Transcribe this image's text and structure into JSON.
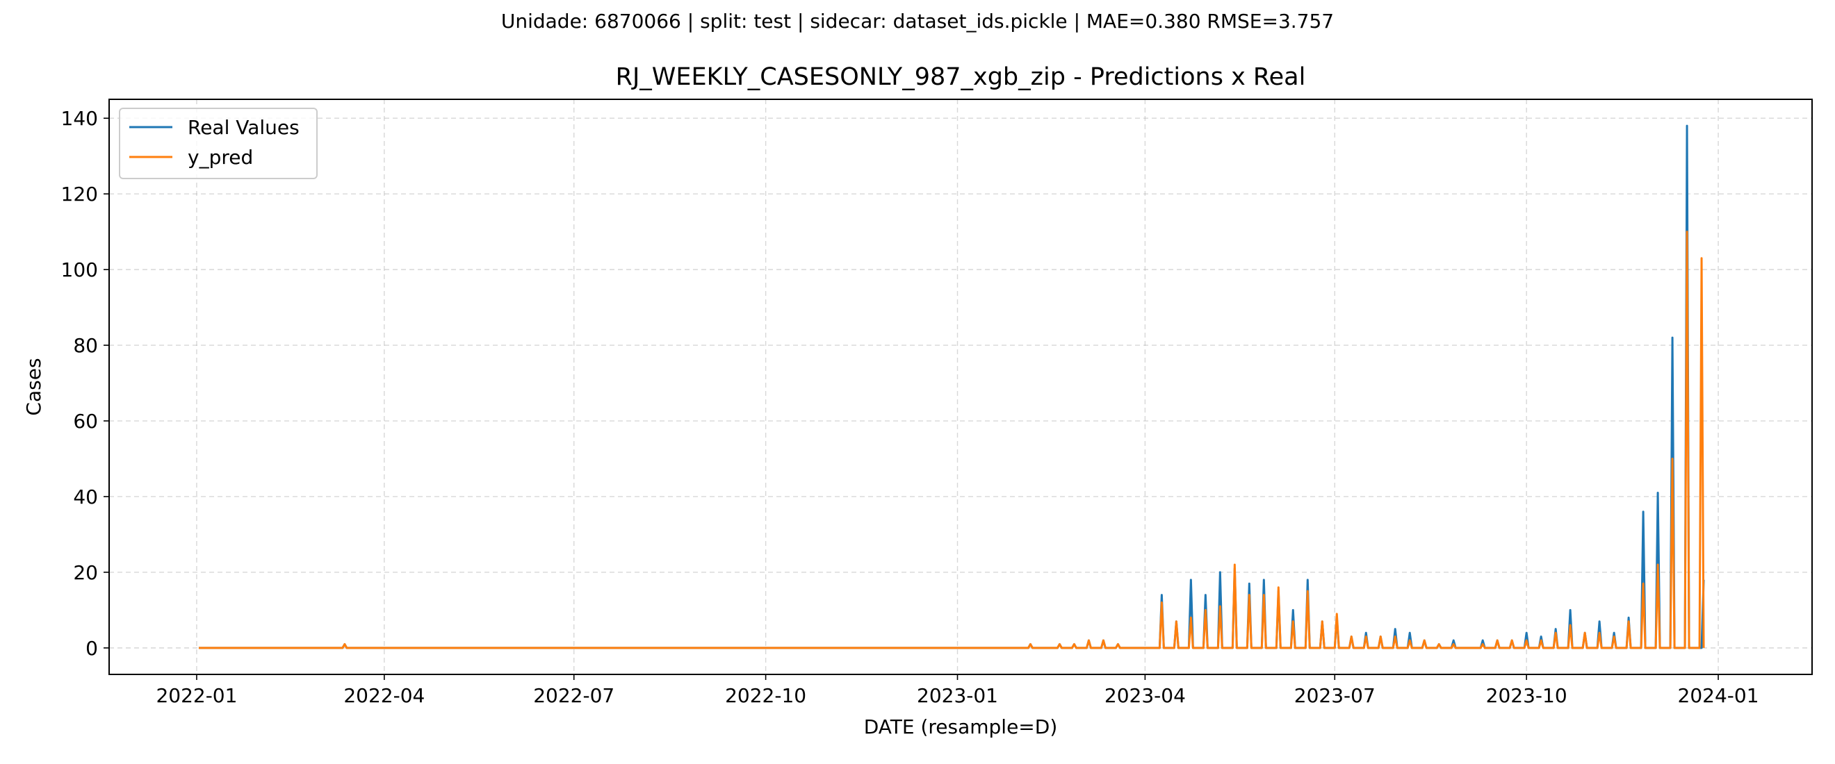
{
  "suptitle": "Unidade: 6870066 | split: test | sidecar: dataset_ids.pickle | MAE=0.380  RMSE=3.757",
  "chart_data": {
    "type": "line",
    "title": "RJ_WEEKLY_CASESONLY_987_xgb_zip - Predictions x Real",
    "xlabel": "DATE (resample=D)",
    "ylabel": "Cases",
    "xlim": [
      "2021-11-20",
      "2024-02-15"
    ],
    "ylim": [
      -7,
      145
    ],
    "xticks": [
      "2022-01",
      "2022-04",
      "2022-07",
      "2022-10",
      "2023-01",
      "2023-04",
      "2023-07",
      "2023-10",
      "2024-01"
    ],
    "yticks": [
      0,
      20,
      40,
      60,
      80,
      100,
      120,
      140
    ],
    "grid": true,
    "legend_position": "top-left",
    "series": [
      {
        "name": "Real Values",
        "color": "#1f77b4",
        "points": [
          [
            "2022-01-02",
            0
          ],
          [
            "2022-03-13",
            1
          ],
          [
            "2023-02-05",
            1
          ],
          [
            "2023-02-19",
            1
          ],
          [
            "2023-02-26",
            1
          ],
          [
            "2023-03-05",
            2
          ],
          [
            "2023-03-12",
            2
          ],
          [
            "2023-03-19",
            1
          ],
          [
            "2023-04-09",
            14
          ],
          [
            "2023-04-16",
            7
          ],
          [
            "2023-04-23",
            18
          ],
          [
            "2023-04-30",
            14
          ],
          [
            "2023-05-07",
            20
          ],
          [
            "2023-05-14",
            21
          ],
          [
            "2023-05-21",
            17
          ],
          [
            "2023-05-28",
            18
          ],
          [
            "2023-06-04",
            15
          ],
          [
            "2023-06-11",
            10
          ],
          [
            "2023-06-18",
            18
          ],
          [
            "2023-06-25",
            7
          ],
          [
            "2023-07-02",
            8
          ],
          [
            "2023-07-09",
            3
          ],
          [
            "2023-07-16",
            4
          ],
          [
            "2023-07-23",
            3
          ],
          [
            "2023-07-30",
            5
          ],
          [
            "2023-08-06",
            4
          ],
          [
            "2023-08-13",
            2
          ],
          [
            "2023-08-20",
            1
          ],
          [
            "2023-08-27",
            2
          ],
          [
            "2023-09-10",
            2
          ],
          [
            "2023-09-17",
            2
          ],
          [
            "2023-09-24",
            2
          ],
          [
            "2023-10-01",
            4
          ],
          [
            "2023-10-08",
            3
          ],
          [
            "2023-10-15",
            5
          ],
          [
            "2023-10-22",
            10
          ],
          [
            "2023-10-29",
            4
          ],
          [
            "2023-11-05",
            7
          ],
          [
            "2023-11-12",
            4
          ],
          [
            "2023-11-19",
            8
          ],
          [
            "2023-11-26",
            36
          ],
          [
            "2023-12-03",
            41
          ],
          [
            "2023-12-10",
            82
          ],
          [
            "2023-12-17",
            138
          ],
          [
            "2023-12-24",
            0
          ],
          [
            "2023-12-25",
            18
          ]
        ]
      },
      {
        "name": "y_pred",
        "color": "#ff7f0e",
        "points": [
          [
            "2022-01-02",
            0
          ],
          [
            "2022-03-13",
            1
          ],
          [
            "2023-02-05",
            1
          ],
          [
            "2023-02-19",
            1
          ],
          [
            "2023-02-26",
            1
          ],
          [
            "2023-03-05",
            2
          ],
          [
            "2023-03-12",
            2
          ],
          [
            "2023-03-19",
            1
          ],
          [
            "2023-04-09",
            12
          ],
          [
            "2023-04-16",
            7
          ],
          [
            "2023-04-23",
            8
          ],
          [
            "2023-04-30",
            10
          ],
          [
            "2023-05-07",
            11
          ],
          [
            "2023-05-14",
            22
          ],
          [
            "2023-05-21",
            14
          ],
          [
            "2023-05-28",
            14
          ],
          [
            "2023-06-04",
            16
          ],
          [
            "2023-06-11",
            7
          ],
          [
            "2023-06-18",
            15
          ],
          [
            "2023-06-25",
            7
          ],
          [
            "2023-07-02",
            9
          ],
          [
            "2023-07-09",
            3
          ],
          [
            "2023-07-16",
            3
          ],
          [
            "2023-07-23",
            3
          ],
          [
            "2023-07-30",
            3
          ],
          [
            "2023-08-06",
            2
          ],
          [
            "2023-08-13",
            2
          ],
          [
            "2023-08-20",
            1
          ],
          [
            "2023-08-27",
            1
          ],
          [
            "2023-09-10",
            1
          ],
          [
            "2023-09-17",
            2
          ],
          [
            "2023-09-24",
            2
          ],
          [
            "2023-10-01",
            2
          ],
          [
            "2023-10-08",
            2
          ],
          [
            "2023-10-15",
            4
          ],
          [
            "2023-10-22",
            6
          ],
          [
            "2023-10-29",
            4
          ],
          [
            "2023-11-05",
            4
          ],
          [
            "2023-11-12",
            3
          ],
          [
            "2023-11-19",
            7
          ],
          [
            "2023-11-26",
            17
          ],
          [
            "2023-12-03",
            22
          ],
          [
            "2023-12-10",
            50
          ],
          [
            "2023-12-17",
            110
          ],
          [
            "2023-12-24",
            103
          ],
          [
            "2023-12-25",
            0
          ]
        ]
      }
    ]
  }
}
